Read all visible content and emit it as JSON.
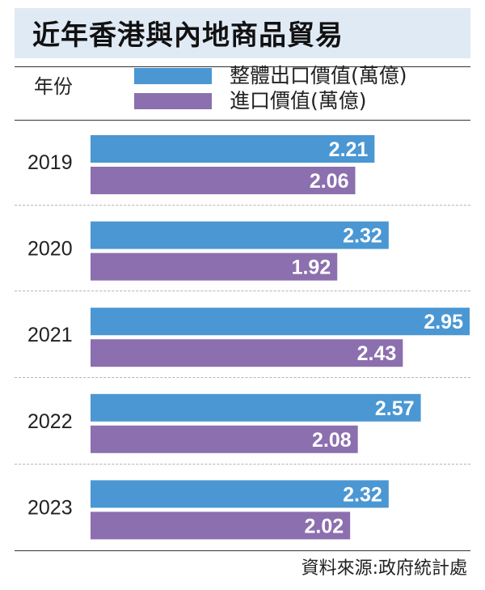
{
  "title": "近年香港與內地商品貿易",
  "header": {
    "year_label": "年份"
  },
  "legend": [
    {
      "label": "整體出口價值(萬億)",
      "color": "#4a97d3"
    },
    {
      "label": "進口價值(萬億)",
      "color": "#8c6fae"
    }
  ],
  "source": "資料來源:政府統計處",
  "chart_data": {
    "type": "bar",
    "orientation": "horizontal",
    "title": "近年香港與內地商品貿易",
    "xlabel": "",
    "ylabel": "年份",
    "categories": [
      "2019",
      "2020",
      "2021",
      "2022",
      "2023"
    ],
    "series": [
      {
        "name": "整體出口價值(萬億)",
        "color": "#4a97d3",
        "values": [
          2.21,
          2.32,
          2.95,
          2.57,
          2.32
        ]
      },
      {
        "name": "進口價值(萬億)",
        "color": "#8c6fae",
        "values": [
          2.06,
          1.92,
          2.43,
          2.08,
          2.02
        ]
      }
    ],
    "xlim": [
      0,
      2.95
    ],
    "grid": false,
    "legend_position": "top",
    "data_labels": true
  }
}
